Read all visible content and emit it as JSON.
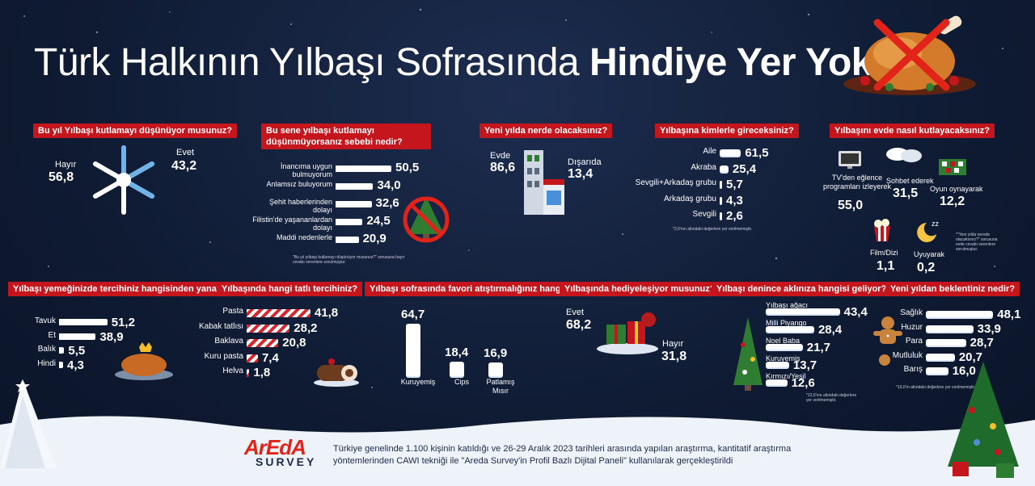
{
  "title": {
    "light": "Türk Halkının Yılbaşı Sofrasında ",
    "bold": "Hindiye Yer Yok!"
  },
  "colors": {
    "background": "#0f1b33",
    "question": "#c4161c",
    "accent_red": "#d8262d"
  },
  "q1": {
    "question": "Bu yıl Yılbaşı kutlamayı düşünüyor musunuz?",
    "no_label": "Hayır",
    "no_value": "56,8",
    "yes_label": "Evet",
    "yes_value": "43,2"
  },
  "q2": {
    "question": "Bu sene yılbaşı kutlamayı düşünmüyorsanız sebebi nedir?",
    "items": [
      {
        "label": "İnancıma uygun bulmuyorum",
        "value": "50,5"
      },
      {
        "label": "Anlamsız buluyorum",
        "value": "34,0"
      },
      {
        "label": "Şehit haberlerinden dolayı",
        "value": "32,6"
      },
      {
        "label": "Filistin'de yaşananlardan dolayı",
        "value": "24,5"
      },
      {
        "label": "Maddi nedenlerle",
        "value": "20,9"
      }
    ],
    "note": "\"Bu yıl yılbaşı kutlamayı düşünüyor musunuz?\" sorusuna hayır cevabı verenlere sorulmuştur."
  },
  "q3": {
    "question": "Yeni yılda nerde olacaksınız?",
    "home_label": "Evde",
    "home_value": "86,6",
    "out_label": "Dışarıda",
    "out_value": "13,4"
  },
  "q4": {
    "question": "Yılbaşına kimlerle gireceksiniz?",
    "items": [
      {
        "label": "Aile",
        "value": "61,5"
      },
      {
        "label": "Akraba",
        "value": "25,4"
      },
      {
        "label": "Sevgili+Arkadaş grubu",
        "value": "5,7"
      },
      {
        "label": "Arkadaş grubu",
        "value": "4,3"
      },
      {
        "label": "Sevgili",
        "value": "2,6"
      }
    ],
    "note": "*2,6'nın altındaki değerlere yer verilmemiştir."
  },
  "q5": {
    "question": "Yılbaşını evde nasıl kutlayacaksınız?",
    "tv_label": "TV'den eğlence programları izleyerek",
    "tv_value": "55,0",
    "chat_label": "Sohbet ederek",
    "chat_value": "31,5",
    "game_label": "Oyun oynayarak",
    "game_value": "12,2",
    "film_label": "Film/Dizi",
    "film_value": "1,1",
    "sleep_label": "Uyuyarak",
    "sleep_value": "0,2",
    "note": "*\"Yeni yılda nerede olacaksınız?\" sorusuna evde cevabı verenlere sorulmuştur."
  },
  "q6": {
    "question": "Yılbaşı yemeğinizde tercihiniz hangisinden yana?",
    "items": [
      {
        "label": "Tavuk",
        "value": "51,2"
      },
      {
        "label": "Et",
        "value": "38,9"
      },
      {
        "label": "Balık",
        "value": "5,5"
      },
      {
        "label": "Hindi",
        "value": "4,3"
      }
    ]
  },
  "q7": {
    "question": "Yılbaşında hangi tatlı tercihiniz?",
    "items": [
      {
        "label": "Pasta",
        "value": "41,8"
      },
      {
        "label": "Kabak tatlısı",
        "value": "28,2"
      },
      {
        "label": "Baklava",
        "value": "20,8"
      },
      {
        "label": "Kuru pasta",
        "value": "7,4"
      },
      {
        "label": "Helva",
        "value": "1,8"
      }
    ]
  },
  "q8": {
    "question": "Yılbaşı sofrasında favori atıştırmalığınız hangisi?",
    "items": [
      {
        "label": "Kuruyemiş",
        "value": "64,7"
      },
      {
        "label": "Cips",
        "value": "18,4"
      },
      {
        "label": "Patlamış Mısır",
        "value": "16,9"
      }
    ]
  },
  "q9": {
    "question": "Yılbaşında hediyeleşiyor musunuz?",
    "yes_label": "Evet",
    "yes_value": "68,2",
    "no_label": "Hayır",
    "no_value": "31,8"
  },
  "q10": {
    "question": "Yılbaşı denince aklınıza hangisi geliyor?",
    "items": [
      {
        "label": "Yılbaşı ağacı",
        "value": "43,4"
      },
      {
        "label": "Milli Piyango",
        "value": "28,4"
      },
      {
        "label": "Noel Baba",
        "value": "21,7"
      },
      {
        "label": "Kuruyemiş",
        "value": "13,7"
      },
      {
        "label": "Kırmızı/Yeşil",
        "value": "12,6"
      }
    ],
    "note": "*12,6'nın altındaki değerlere yer verilmemiştir."
  },
  "q11": {
    "question": "Yeni yıldan beklentiniz nedir?",
    "items": [
      {
        "label": "Sağlık",
        "value": "48,1"
      },
      {
        "label": "Huzur",
        "value": "33,9"
      },
      {
        "label": "Para",
        "value": "28,7"
      },
      {
        "label": "Mutluluk",
        "value": "20,7"
      },
      {
        "label": "Barış",
        "value": "16,0"
      }
    ],
    "note": "*16,0'ın altındaki değerlere yer verilmemiştir."
  },
  "footer": {
    "logo_main": "ArEdA",
    "logo_sub": "SURVEY",
    "text": "Türkiye genelinde 1.100 kişinin katıldığı ve 26-29 Aralık 2023 tarihleri arasında yapılan araştırma, kantitatif araştırma yöntemlerinden CAWI tekniği ile \"Areda Survey'in Profil Bazlı Dijital Paneli\" kullanılarak gerçekleştirildi"
  },
  "chart_data": [
    {
      "type": "pie",
      "title": "Bu yıl Yılbaşı kutlamayı düşünüyor musunuz?",
      "categories": [
        "Hayır",
        "Evet"
      ],
      "values": [
        56.8,
        43.2
      ]
    },
    {
      "type": "bar",
      "title": "Bu sene yılbaşı kutlamayı düşünmüyorsanız sebebi nedir?",
      "categories": [
        "İnancıma uygun bulmuyorum",
        "Anlamsız buluyorum",
        "Şehit haberlerinden dolayı",
        "Filistin'de yaşananlardan dolayı",
        "Maddi nedenlerle"
      ],
      "values": [
        50.5,
        34.0,
        32.6,
        24.5,
        20.9
      ]
    },
    {
      "type": "pie",
      "title": "Yeni yılda nerde olacaksınız?",
      "categories": [
        "Evde",
        "Dışarıda"
      ],
      "values": [
        86.6,
        13.4
      ]
    },
    {
      "type": "bar",
      "title": "Yılbaşına kimlerle gireceksiniz?",
      "categories": [
        "Aile",
        "Akraba",
        "Sevgili+Arkadaş grubu",
        "Arkadaş grubu",
        "Sevgili"
      ],
      "values": [
        61.5,
        25.4,
        5.7,
        4.3,
        2.6
      ]
    },
    {
      "type": "bar",
      "title": "Yılbaşını evde nasıl kutlayacaksınız?",
      "categories": [
        "TV'den eğlence programları izleyerek",
        "Sohbet ederek",
        "Oyun oynayarak",
        "Film/Dizi",
        "Uyuyarak"
      ],
      "values": [
        55.0,
        31.5,
        12.2,
        1.1,
        0.2
      ]
    },
    {
      "type": "bar",
      "title": "Yılbaşı yemeğinizde tercihiniz hangisinden yana?",
      "categories": [
        "Tavuk",
        "Et",
        "Balık",
        "Hindi"
      ],
      "values": [
        51.2,
        38.9,
        5.5,
        4.3
      ]
    },
    {
      "type": "bar",
      "title": "Yılbaşında hangi tatlı tercihiniz?",
      "categories": [
        "Pasta",
        "Kabak tatlısı",
        "Baklava",
        "Kuru pasta",
        "Helva"
      ],
      "values": [
        41.8,
        28.2,
        20.8,
        7.4,
        1.8
      ]
    },
    {
      "type": "bar",
      "title": "Yılbaşı sofrasında favori atıştırmalığınız hangisi?",
      "categories": [
        "Kuruyemiş",
        "Cips",
        "Patlamış Mısır"
      ],
      "values": [
        64.7,
        18.4,
        16.9
      ]
    },
    {
      "type": "pie",
      "title": "Yılbaşında hediyeleşiyor musunuz?",
      "categories": [
        "Evet",
        "Hayır"
      ],
      "values": [
        68.2,
        31.8
      ]
    },
    {
      "type": "bar",
      "title": "Yılbaşı denince aklınıza hangisi geliyor?",
      "categories": [
        "Yılbaşı ağacı",
        "Milli Piyango",
        "Noel Baba",
        "Kuruyemiş",
        "Kırmızı/Yeşil"
      ],
      "values": [
        43.4,
        28.4,
        21.7,
        13.7,
        12.6
      ]
    },
    {
      "type": "bar",
      "title": "Yeni yıldan beklentiniz nedir?",
      "categories": [
        "Sağlık",
        "Huzur",
        "Para",
        "Mutluluk",
        "Barış"
      ],
      "values": [
        48.1,
        33.9,
        28.7,
        20.7,
        16.0
      ]
    }
  ]
}
